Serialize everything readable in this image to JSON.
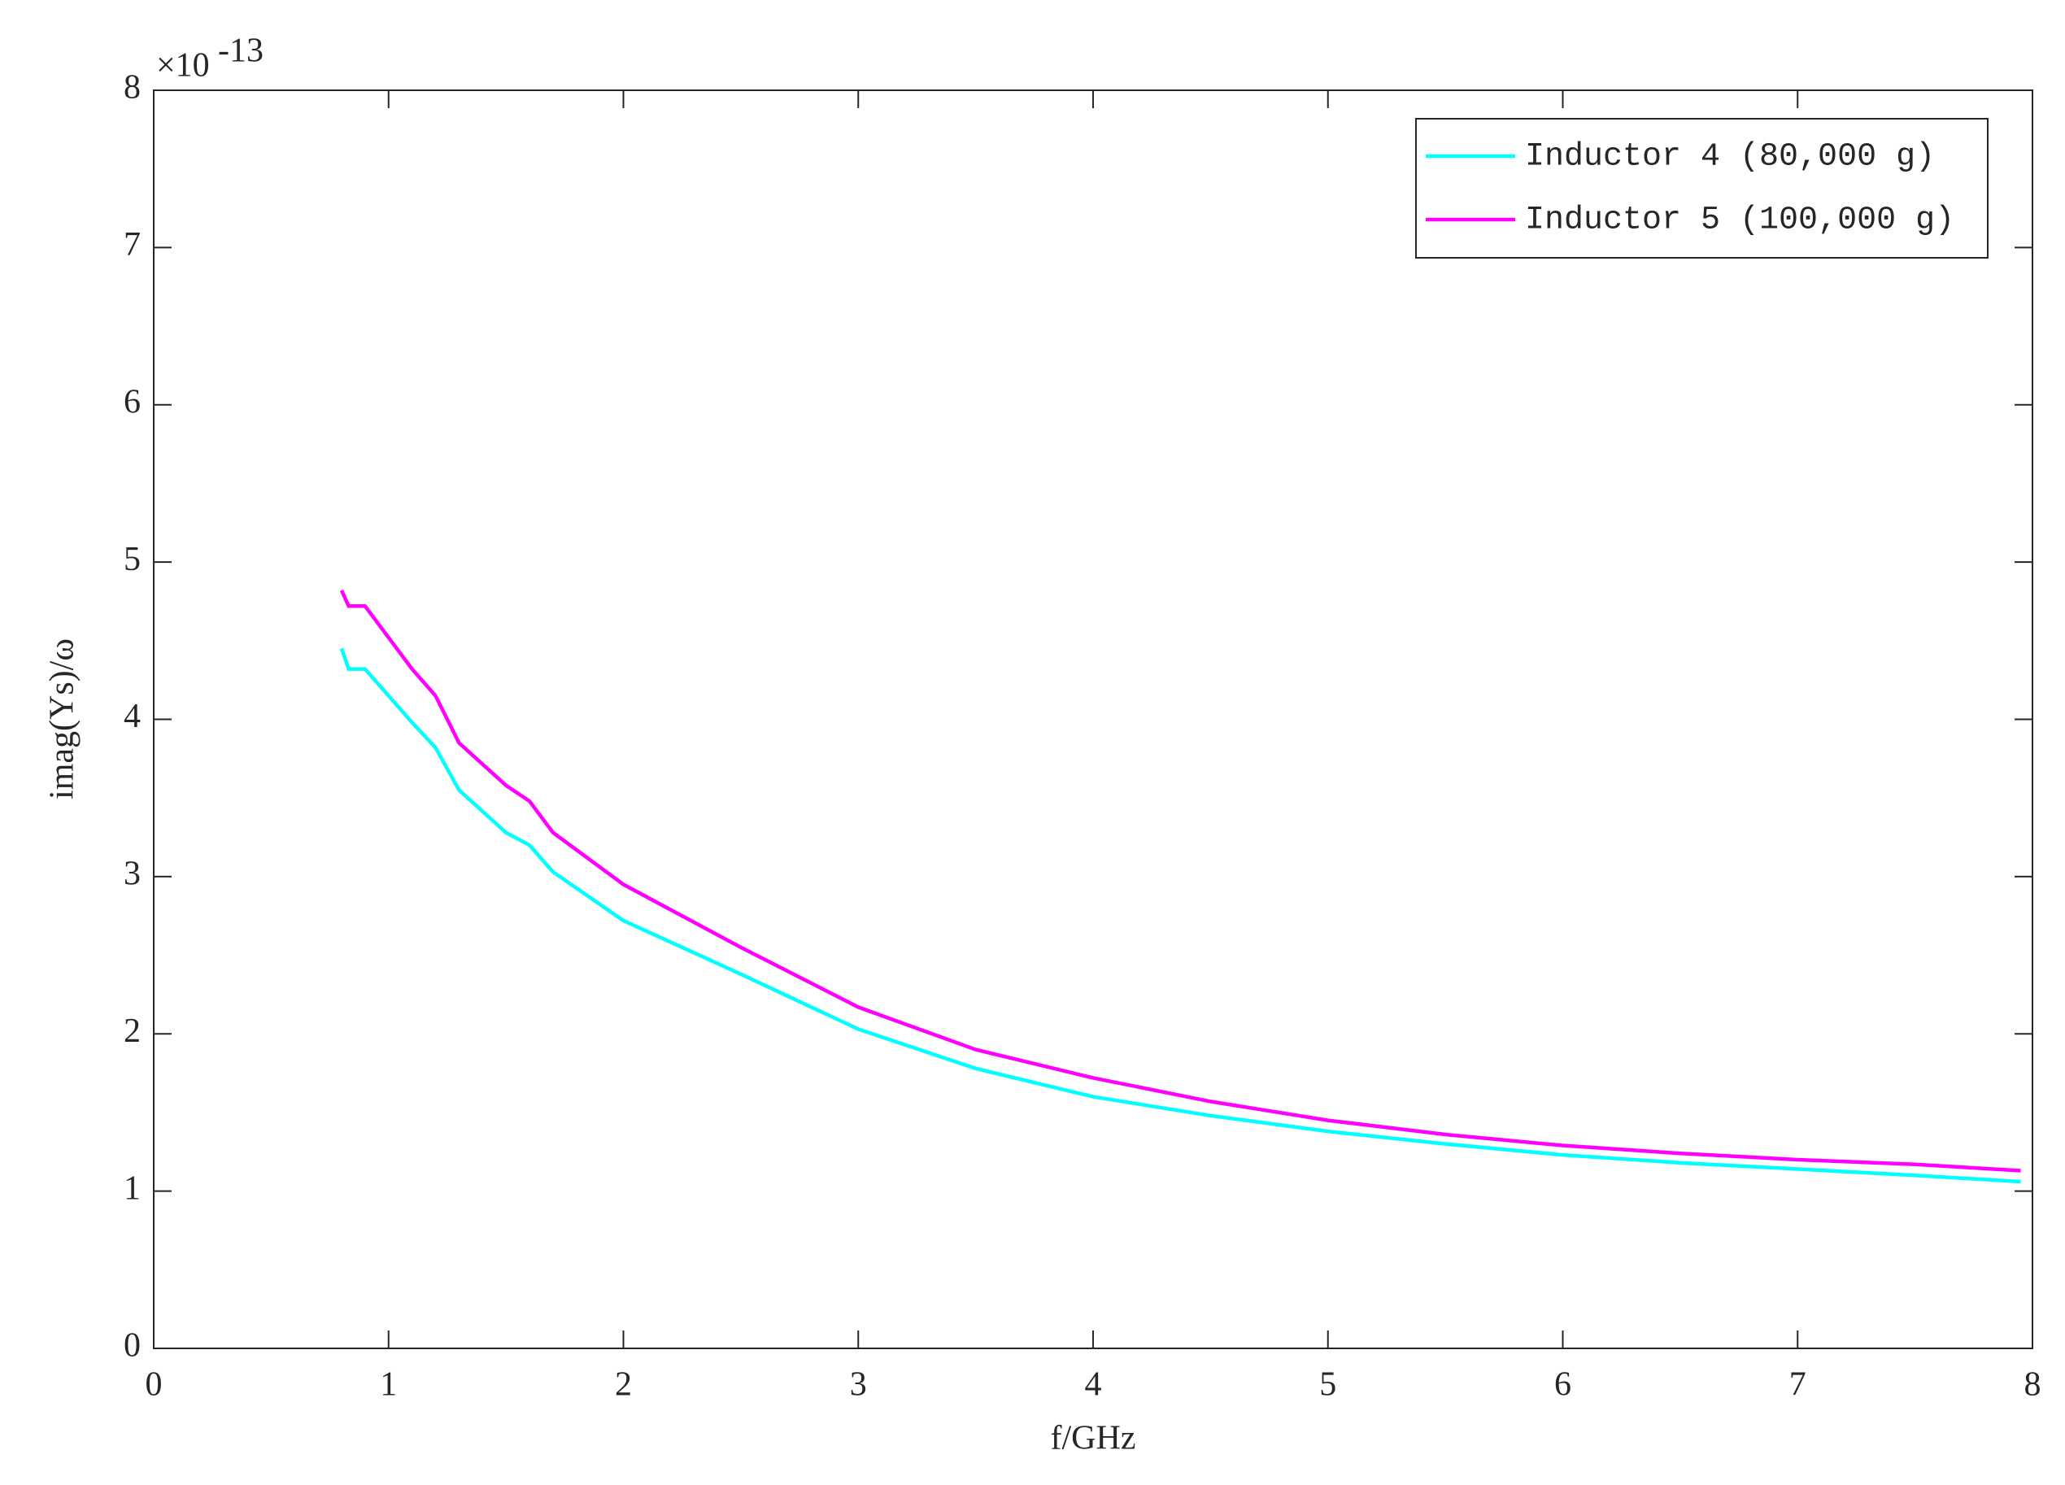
{
  "chart_data": {
    "type": "line",
    "xlabel": "f/GHz",
    "ylabel": "imag(Ys)/ω",
    "y_multiplier": {
      "base": "×10",
      "exponent": "-13"
    },
    "x": [
      0.8,
      0.83,
      0.9,
      1.0,
      1.1,
      1.2,
      1.3,
      1.5,
      1.6,
      1.7,
      2.0,
      2.5,
      3.0,
      3.5,
      4.0,
      4.5,
      5.0,
      5.5,
      6.0,
      6.5,
      7.0,
      7.5,
      7.95
    ],
    "series": [
      {
        "name": "Inductor 4 (80,000 g)",
        "color": "#00ffff",
        "values": [
          4.45,
          4.32,
          4.32,
          4.15,
          3.98,
          3.82,
          3.55,
          3.28,
          3.2,
          3.03,
          2.72,
          2.38,
          2.03,
          1.78,
          1.6,
          1.48,
          1.38,
          1.3,
          1.23,
          1.18,
          1.14,
          1.1,
          1.06
        ]
      },
      {
        "name": "Inductor 5 (100,000 g)",
        "color": "#ff00ff",
        "values": [
          4.82,
          4.72,
          4.72,
          4.52,
          4.32,
          4.15,
          3.85,
          3.58,
          3.48,
          3.28,
          2.95,
          2.55,
          2.17,
          1.9,
          1.72,
          1.57,
          1.45,
          1.36,
          1.29,
          1.24,
          1.2,
          1.17,
          1.13
        ]
      }
    ],
    "xlim": [
      0,
      8
    ],
    "xticks": [
      0,
      1,
      2,
      3,
      4,
      5,
      6,
      7,
      8
    ],
    "ylim": [
      0,
      8
    ],
    "yticks": [
      0,
      1,
      2,
      3,
      4,
      5,
      6,
      7,
      8
    ],
    "grid": false,
    "legend": "upper right"
  }
}
